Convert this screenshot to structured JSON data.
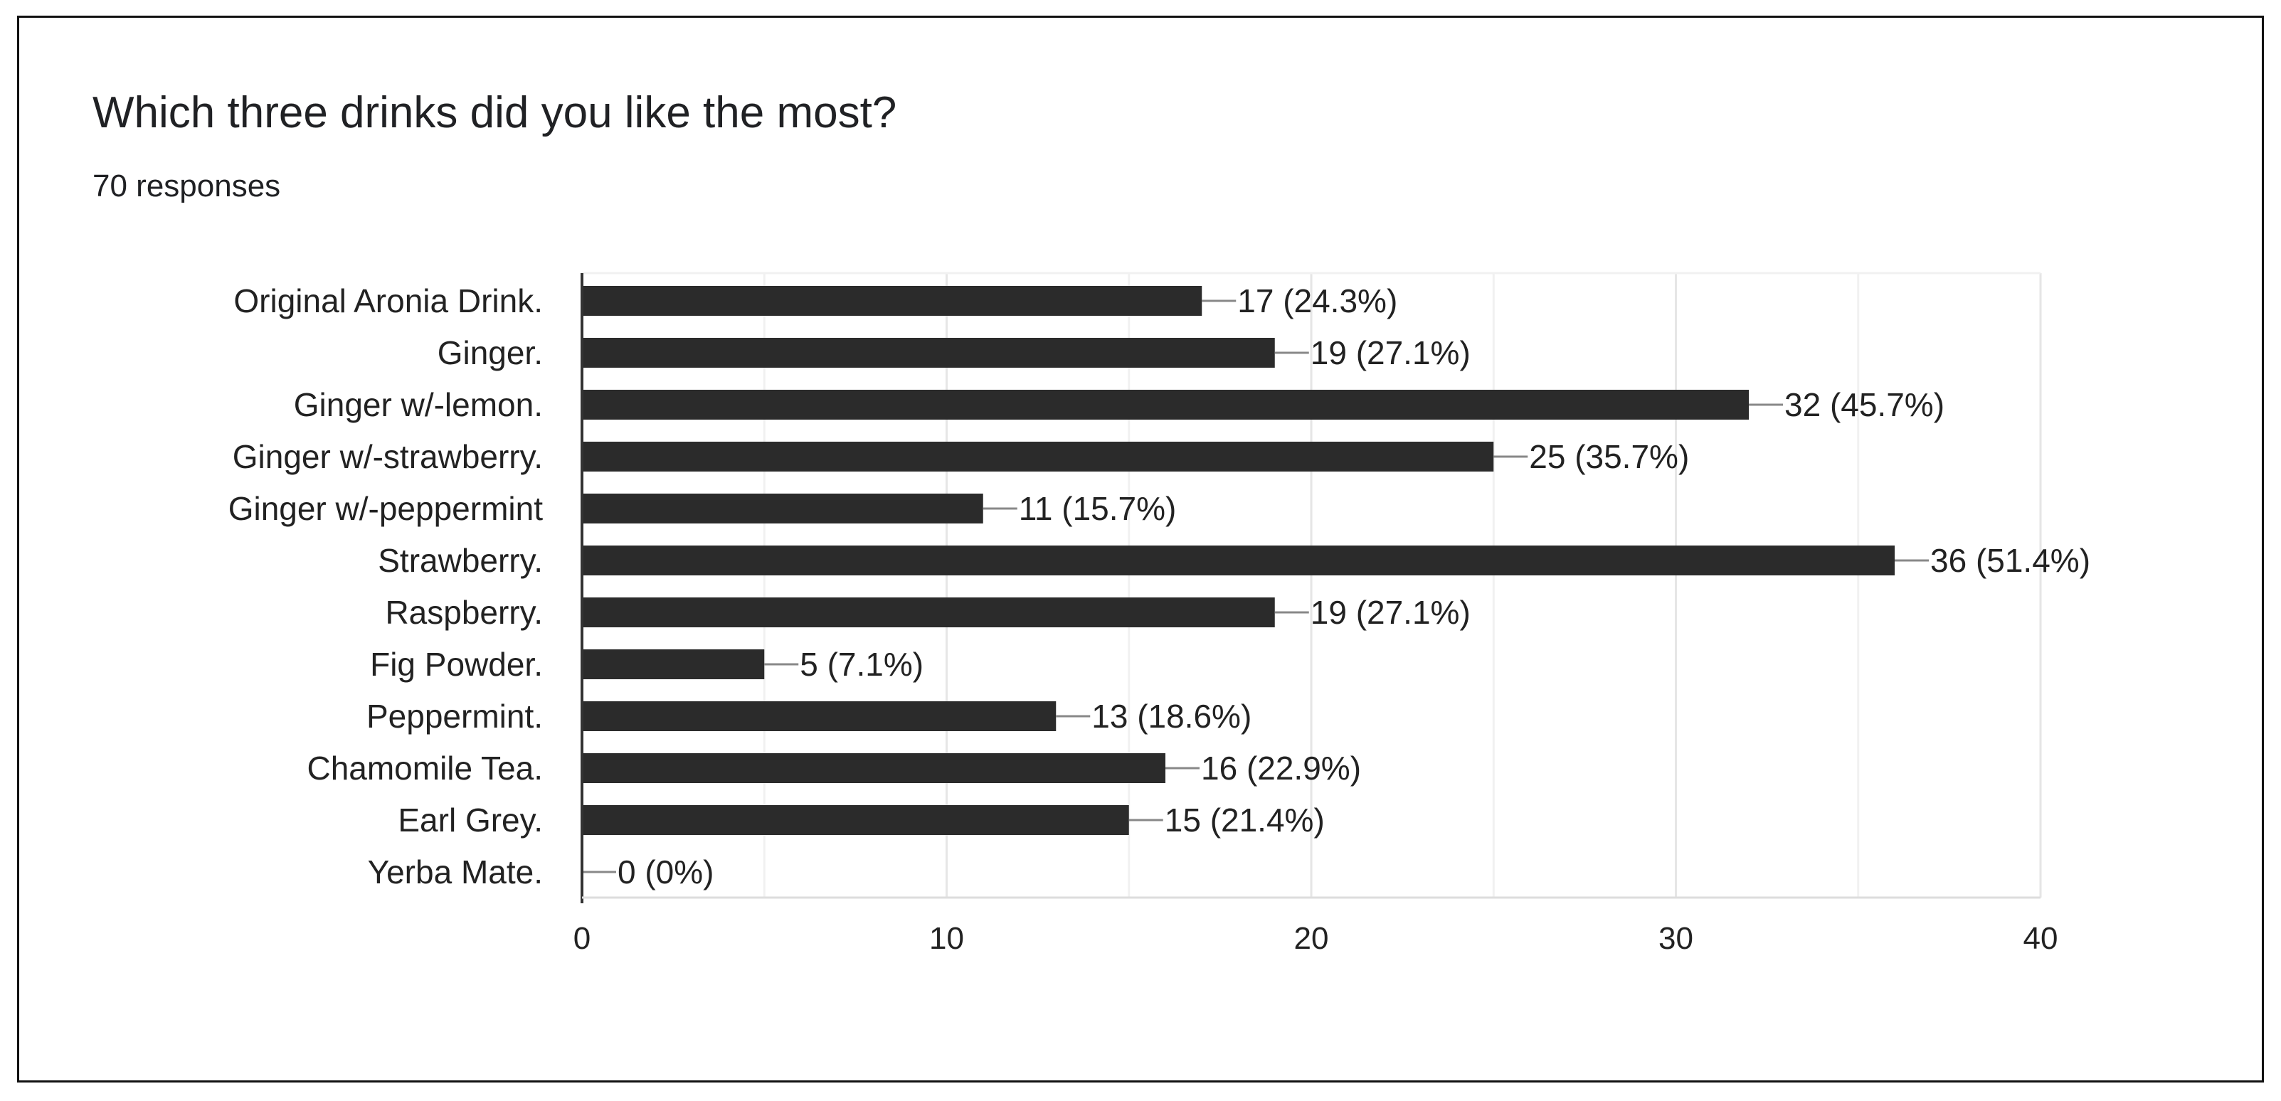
{
  "title": "Which three drinks did you like the most?",
  "subtitle": "70 responses",
  "colors": {
    "bar": "#2b2b2b",
    "grid": "#e6e6e6",
    "axis": "#333333",
    "leader": "#888888",
    "text": "#222222"
  },
  "chart_data": {
    "type": "bar",
    "orientation": "horizontal",
    "categories": [
      "Original Aronia Drink.",
      "Ginger.",
      "Ginger w/-lemon.",
      "Ginger w/-strawberry.",
      "Ginger w/-peppermint",
      "Strawberry.",
      "Raspberry.",
      "Fig Powder.",
      "Peppermint.",
      "Chamomile Tea.",
      "Earl Grey.",
      "Yerba Mate."
    ],
    "values": [
      17,
      19,
      32,
      25,
      11,
      36,
      19,
      5,
      13,
      16,
      15,
      0
    ],
    "value_labels": [
      "17 (24.3%)",
      "19 (27.1%)",
      "32 (45.7%)",
      "25 (35.7%)",
      "11 (15.7%)",
      "36 (51.4%)",
      "19 (27.1%)",
      "5 (7.1%)",
      "13 (18.6%)",
      "16 (22.9%)",
      "15 (21.4%)",
      "0 (0%)"
    ],
    "xlim": [
      0,
      40
    ],
    "xticks": [
      0,
      10,
      20,
      30,
      40
    ],
    "xtick_labels": [
      "0",
      "10",
      "20",
      "30",
      "40"
    ],
    "grid": true
  }
}
